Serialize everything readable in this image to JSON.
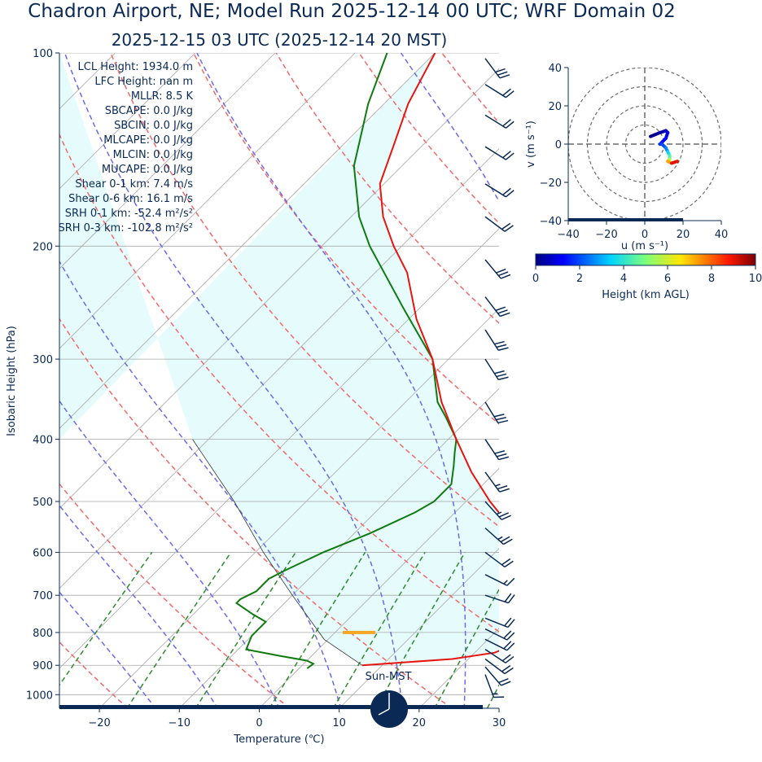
{
  "title": "Chadron Airport, NE; Model Run 2025-12-14 00 UTC; WRF Domain 02",
  "subtitle": "2025-12-15 03 UTC  (2025-12-14 20 MST)",
  "colors": {
    "temperature": "#e8140f",
    "dewpoint": "#0f7a0f",
    "dry_adiabat": "#f06a6a",
    "moist_adiabat": "#6a6aee",
    "mixing_ratio": "#2e8b2e",
    "isotherm": "#a0a0a0",
    "cape_fill": "#e6fcfc",
    "barb": "#0a2a55",
    "lcl_marker": "#f5a623",
    "dark_navy": "#0a2a55"
  },
  "params": [
    "LCL Height: 1934.0 m",
    "LFC Height: nan m",
    "MLLR: 8.5 K",
    "SBCAPE: 0.0 J/kg",
    "SBCIN: 0.0 J/kg",
    "MLCAPE: 0.0 J/kg",
    "MLCIN: 0.0 J/kg",
    "MUCAPE: 0.0 J/kg",
    "Shear 0-1 km: 7.4 m/s",
    "Shear 0-6 km: 16.1 m/s",
    "SRH 0-1 km: -52.4 m²/s²",
    "SRH 0-3 km: -102.8 m²/s²"
  ],
  "clock_label": "Sun-MST",
  "chart_data": [
    {
      "type": "line",
      "name": "skew-t",
      "xlabel": "Temperature (℃)",
      "ylabel": "Isobaric Height (hPa)",
      "xlim": [
        -25,
        30
      ],
      "ylim": [
        1050,
        100
      ],
      "y_scale": "log",
      "x_ticks": [
        -20,
        -10,
        0,
        10,
        20,
        30
      ],
      "x_tick_labels": [
        "−20",
        "−10",
        "0",
        "10",
        "20",
        "30"
      ],
      "y_ticks": [
        100,
        200,
        300,
        400,
        500,
        600,
        700,
        800,
        900,
        1000
      ],
      "y_tick_labels": [
        "100",
        "200",
        "300",
        "400",
        "500",
        "600",
        "700",
        "800",
        "900",
        "1000"
      ],
      "grid": true,
      "series": [
        {
          "name": "",
          "role": "temperature",
          "points": [
            [
              900,
              7.5
            ],
            [
              880,
              18
            ],
            [
              860,
              22.5
            ],
            [
              840,
              23.6
            ],
            [
              800,
              23.4
            ],
            [
              770,
              22.3
            ],
            [
              740,
              21.9
            ],
            [
              710,
              22.3
            ],
            [
              650,
              18.5
            ],
            [
              600,
              13.5
            ],
            [
              550,
              9
            ],
            [
              500,
              3
            ],
            [
              450,
              -3
            ],
            [
              400,
              -9
            ],
            [
              350,
              -15.5
            ],
            [
              300,
              -22
            ],
            [
              260,
              -29
            ],
            [
              220,
              -36
            ],
            [
              200,
              -41
            ],
            [
              180,
              -46
            ],
            [
              160,
              -50.5
            ],
            [
              140,
              -53.5
            ],
            [
              120,
              -57
            ],
            [
              100,
              -60
            ]
          ]
        },
        {
          "name": "",
          "role": "dewpoint",
          "points": [
            [
              910,
              1
            ],
            [
              895,
              1.2
            ],
            [
              885,
              0
            ],
            [
              870,
              -4
            ],
            [
              850,
              -9
            ],
            [
              810,
              -10
            ],
            [
              790,
              -10
            ],
            [
              770,
              -10
            ],
            [
              750,
              -12.5
            ],
            [
              720,
              -16
            ],
            [
              710,
              -16
            ],
            [
              690,
              -15
            ],
            [
              660,
              -15
            ],
            [
              640,
              -14
            ],
            [
              600,
              -11.5
            ],
            [
              560,
              -8
            ],
            [
              520,
              -5
            ],
            [
              500,
              -4
            ],
            [
              470,
              -4
            ],
            [
              440,
              -6
            ],
            [
              420,
              -7.5
            ],
            [
              400,
              -9
            ],
            [
              370,
              -13
            ],
            [
              350,
              -16
            ],
            [
              300,
              -22
            ],
            [
              250,
              -32
            ],
            [
              200,
              -44
            ],
            [
              180,
              -49
            ],
            [
              150,
              -56
            ],
            [
              120,
              -62
            ],
            [
              100,
              -66
            ]
          ]
        },
        {
          "name": "",
          "role": "parcel",
          "points": [
            [
              900,
              7.5
            ],
            [
              820,
              -0.5
            ],
            [
              700,
              -10
            ],
            [
              600,
              -19
            ],
            [
              500,
              -29
            ],
            [
              400,
              -42
            ]
          ]
        }
      ],
      "lcl": {
        "pressure": 800,
        "temp": 3
      },
      "wind_barbs": [
        {
          "p": 930,
          "u": -3,
          "v": 8
        },
        {
          "p": 905,
          "u": -6,
          "v": 7
        },
        {
          "p": 880,
          "u": -8,
          "v": 6
        },
        {
          "p": 850,
          "u": -9,
          "v": 6
        },
        {
          "p": 820,
          "u": -10,
          "v": 5
        },
        {
          "p": 790,
          "u": -10,
          "v": 5
        },
        {
          "p": 760,
          "u": -10,
          "v": 4
        },
        {
          "p": 700,
          "u": -9,
          "v": 3
        },
        {
          "p": 650,
          "u": -8,
          "v": 4
        },
        {
          "p": 600,
          "u": -8,
          "v": 6
        },
        {
          "p": 550,
          "u": -9,
          "v": 8
        },
        {
          "p": 500,
          "u": -9,
          "v": 10
        },
        {
          "p": 450,
          "u": -8,
          "v": 11
        },
        {
          "p": 400,
          "u": -8,
          "v": 12
        },
        {
          "p": 350,
          "u": -8,
          "v": 13
        },
        {
          "p": 300,
          "u": -9,
          "v": 14
        },
        {
          "p": 270,
          "u": -9,
          "v": 14
        },
        {
          "p": 240,
          "u": -10,
          "v": 13
        },
        {
          "p": 210,
          "u": -10,
          "v": 12
        },
        {
          "p": 180,
          "u": -8,
          "v": 6
        },
        {
          "p": 160,
          "u": -8,
          "v": 5
        },
        {
          "p": 140,
          "u": -8,
          "v": 5
        },
        {
          "p": 125,
          "u": -8,
          "v": 5
        },
        {
          "p": 112,
          "u": -8,
          "v": 5
        },
        {
          "p": 102,
          "u": -9,
          "v": 12
        }
      ]
    },
    {
      "type": "line",
      "name": "hodograph",
      "xlabel": "u (m s⁻¹)",
      "ylabel": "v (m s⁻¹)",
      "xlim": [
        -40,
        40
      ],
      "ylim": [
        -40,
        40
      ],
      "x_ticks": [
        -40,
        -20,
        0,
        20,
        40
      ],
      "x_tick_labels": [
        "−40",
        "−20",
        "0",
        "20",
        "40"
      ],
      "y_ticks": [
        -40,
        -20,
        0,
        20,
        40
      ],
      "y_tick_labels": [
        "−40",
        "−20",
        "0",
        "20",
        "40"
      ],
      "rings": [
        10,
        20,
        30,
        40
      ],
      "points": [
        [
          3,
          4
        ],
        [
          8,
          6
        ],
        [
          11,
          7
        ],
        [
          12,
          6
        ],
        [
          11,
          3
        ],
        [
          8,
          0
        ],
        [
          9,
          0
        ],
        [
          11,
          -2
        ],
        [
          12,
          -4
        ],
        [
          13,
          -6
        ],
        [
          13,
          -8
        ],
        [
          12,
          -9
        ],
        [
          14,
          -10
        ],
        [
          17,
          -9
        ]
      ],
      "heights_km": [
        0.1,
        0.3,
        0.6,
        0.9,
        1.2,
        1.5,
        1.8,
        2.2,
        3,
        4,
        5,
        6.5,
        8,
        10
      ]
    },
    {
      "type": "colorbar",
      "label": "Height (km AGL)",
      "range": [
        0,
        10
      ],
      "ticks": [
        0,
        2,
        4,
        6,
        8,
        10
      ],
      "tick_labels": [
        "0",
        "2",
        "4",
        "6",
        "8",
        "10"
      ]
    }
  ]
}
